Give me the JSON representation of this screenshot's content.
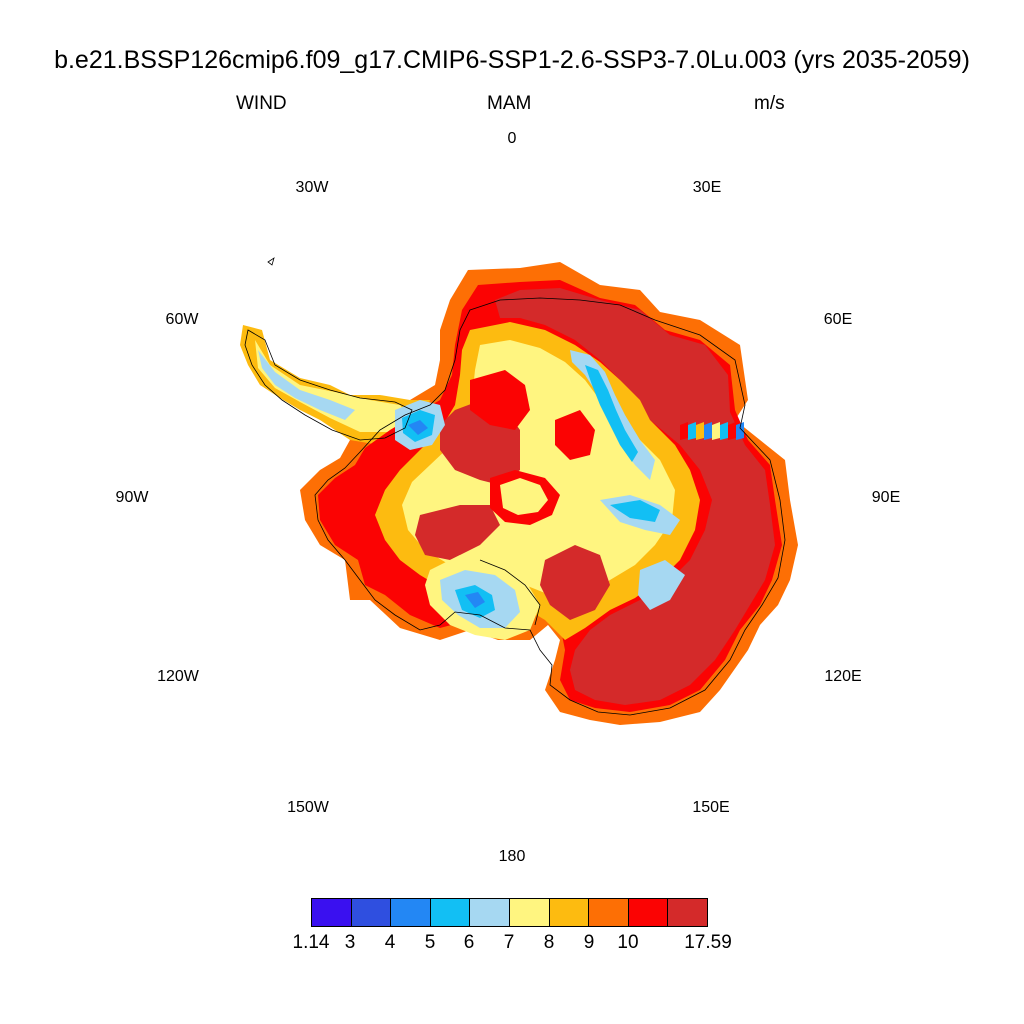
{
  "header": {
    "title": "b.e21.BSSP126cmip6.f09_g17.CMIP6-SSP1-2.6-SSP3-7.0Lu.003 (yrs 2035-2059)",
    "variable": "WIND",
    "season": "MAM",
    "units": "m/s"
  },
  "longitude_labels": [
    "0",
    "30E",
    "60E",
    "90E",
    "120E",
    "150E",
    "180",
    "150W",
    "120W",
    "90W",
    "60W",
    "30W"
  ],
  "colorbar": {
    "colors": [
      "#3a10f0",
      "#2f4fe0",
      "#2387f4",
      "#12bff4",
      "#a6d8f2",
      "#fff580",
      "#fdbb10",
      "#fd6f05",
      "#fb0303",
      "#d42a2a"
    ],
    "labels": [
      "1.14",
      "3",
      "4",
      "5",
      "6",
      "7",
      "8",
      "9",
      "10",
      "17.59"
    ]
  },
  "map": {
    "projection": "south polar stereographic",
    "region": "Antarctica",
    "coastline_color": "#000000"
  }
}
